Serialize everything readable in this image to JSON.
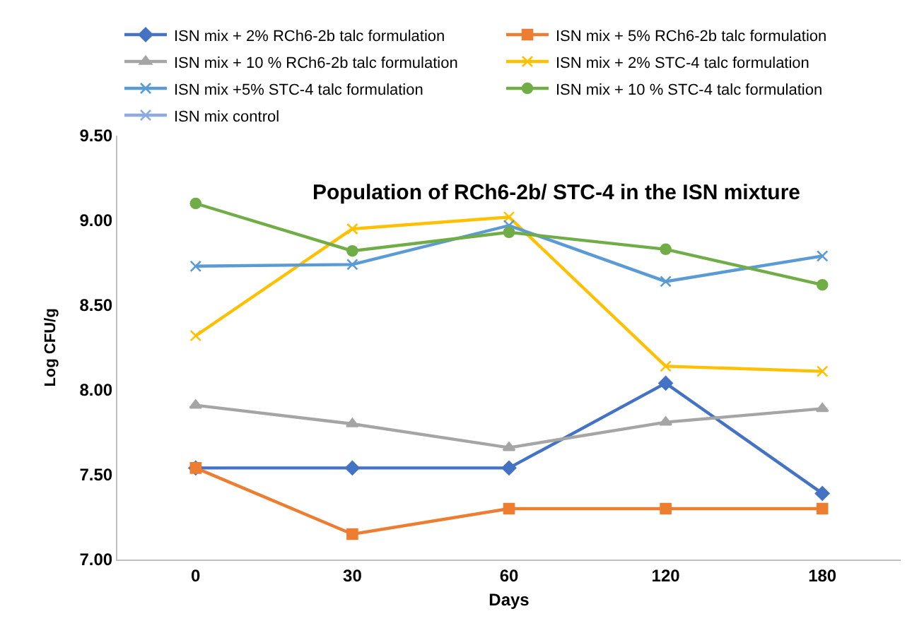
{
  "chart_data": {
    "type": "line",
    "title": "Population of RCh6-2b/ STC-4 in the ISN mixture",
    "xlabel": "Days",
    "ylabel": "Log CFU/g",
    "categories": [
      "0",
      "30",
      "60",
      "120",
      "180"
    ],
    "series": [
      {
        "name": "ISN mix + 2% RCh6-2b talc formulation",
        "color": "#4472c4",
        "marker": "diamond",
        "values": [
          7.54,
          7.54,
          7.54,
          8.04,
          7.39
        ]
      },
      {
        "name": "ISN mix + 5% RCh6-2b talc formulation",
        "color": "#ed7d31",
        "marker": "square",
        "values": [
          7.54,
          7.15,
          7.3,
          7.3,
          7.3
        ]
      },
      {
        "name": "ISN mix + 10 % RCh6-2b talc formulation",
        "color": "#a5a5a5",
        "marker": "triangle",
        "values": [
          7.91,
          7.8,
          7.66,
          7.81,
          7.89
        ]
      },
      {
        "name": "ISN mix + 2% STC-4 talc formulation",
        "color": "#ffc000",
        "marker": "cross",
        "values": [
          8.32,
          8.95,
          9.02,
          8.14,
          8.11
        ]
      },
      {
        "name": "ISN mix +5% STC-4 talc formulation",
        "color": "#5b9bd5",
        "marker": "cross",
        "values": [
          8.73,
          8.74,
          8.97,
          8.64,
          8.79
        ]
      },
      {
        "name": "ISN mix + 10 % STC-4 talc formulation",
        "color": "#70ad47",
        "marker": "circle",
        "values": [
          9.1,
          8.82,
          8.93,
          8.83,
          8.62
        ]
      },
      {
        "name": "ISN mix control",
        "color": "#8faadc",
        "marker": "cross",
        "values": [
          null,
          null,
          null,
          null,
          null
        ]
      }
    ],
    "ylim": [
      7.0,
      9.5
    ],
    "yticks": [
      {
        "value": 7.0,
        "label": "7.00"
      },
      {
        "value": 7.5,
        "label": "7.50"
      },
      {
        "value": 8.0,
        "label": "8.00"
      },
      {
        "value": 8.5,
        "label": "8.50"
      },
      {
        "value": 9.0,
        "label": "9.00"
      },
      {
        "value": 9.5,
        "label": "9.50"
      }
    ],
    "legend": "top",
    "line_style": "solid"
  }
}
